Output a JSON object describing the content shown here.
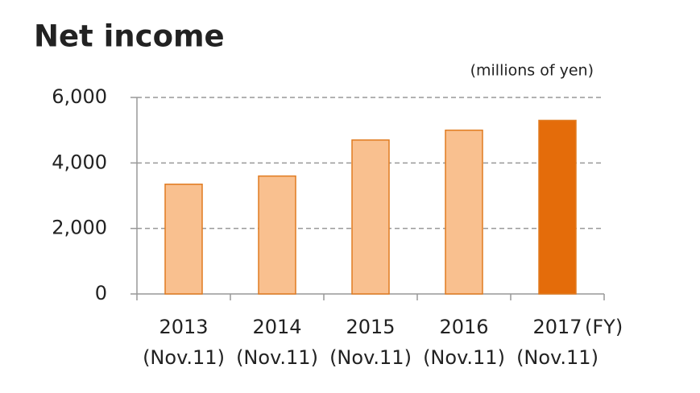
{
  "chart_data": {
    "type": "bar",
    "title": "Net income",
    "unit_label": "(millions of yen)",
    "categories": [
      "2013",
      "2014",
      "2015",
      "2016",
      "2017"
    ],
    "category_sublabels": [
      "(Nov.11)",
      "(Nov.11)",
      "(Nov.11)",
      "(Nov.11)",
      "(Nov.11)"
    ],
    "x_unit": "(FY)",
    "values": [
      3350,
      3600,
      4700,
      5000,
      5300
    ],
    "colors": [
      "#f9c08f",
      "#f9c08f",
      "#f9c08f",
      "#f9c08f",
      "#e46c0a"
    ],
    "edge_color": "#e07b20",
    "ylim": [
      0,
      6000
    ],
    "yticks": [
      0,
      {
        "value": 2000,
        "label": "2,000"
      },
      {
        "value": 4000,
        "label": "4,000"
      },
      {
        "value": 6000,
        "label": "6,000"
      }
    ],
    "grid": true
  }
}
